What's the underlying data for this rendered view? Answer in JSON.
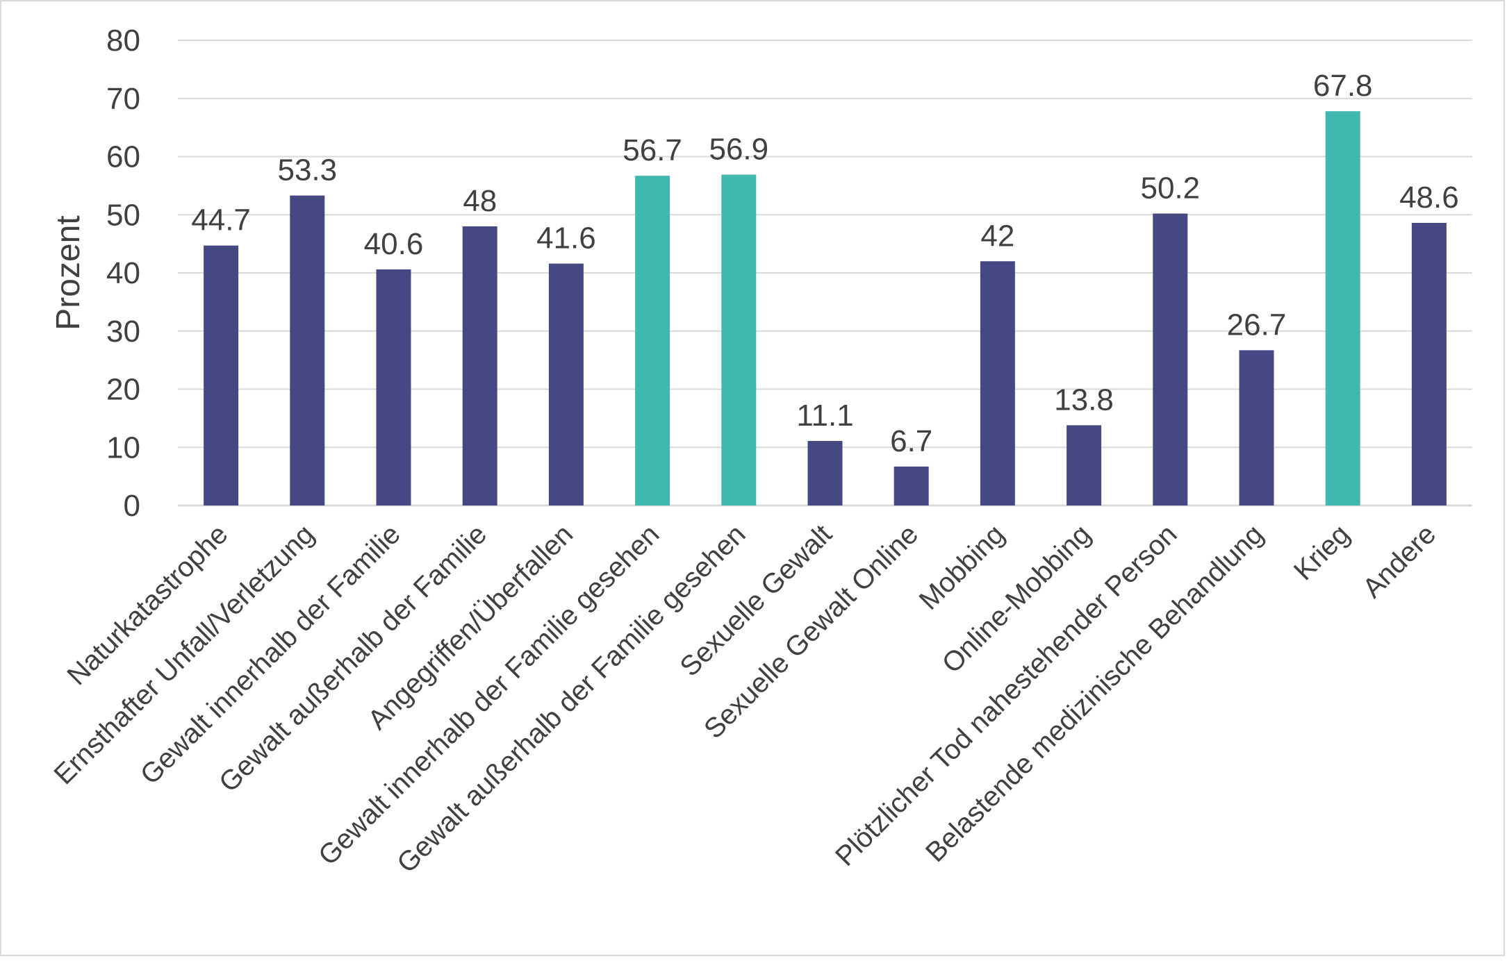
{
  "chart_data": {
    "type": "bar",
    "title": "",
    "xlabel": "",
    "ylabel": "Prozent",
    "ylim": [
      0,
      80
    ],
    "yticks": [
      0,
      10,
      20,
      30,
      40,
      50,
      60,
      70,
      80
    ],
    "grid": true,
    "legend": "none",
    "categories": [
      "Naturkatastrophe",
      "Ernsthafter Unfall/Verletzung",
      "Gewalt innerhalb der Familie",
      "Gewalt außerhalb der Familie",
      "Angegriffen/Überfallen",
      "Gewalt innerhalb der Familie gesehen",
      "Gewalt außerhalb der Familie gesehen",
      "Sexuelle Gewalt",
      "Sexuelle Gewalt Online",
      "Mobbing",
      "Online-Mobbing",
      "Plötzlicher Tod nahestehender Person",
      "Belastende medizinische Behandlung",
      "Krieg",
      "Andere"
    ],
    "values": [
      44.7,
      53.3,
      40.6,
      48,
      41.6,
      56.7,
      56.9,
      11.1,
      6.7,
      42,
      13.8,
      50.2,
      26.7,
      67.8,
      48.6
    ],
    "data_labels": [
      "44.7",
      "53.3",
      "40.6",
      "48",
      "41.6",
      "56.7",
      "56.9",
      "11.1",
      "6.7",
      "42",
      "13.8",
      "50.2",
      "26.7",
      "67.8",
      "48.6"
    ],
    "highlighted": [
      false,
      false,
      false,
      false,
      false,
      true,
      true,
      false,
      false,
      false,
      false,
      false,
      false,
      true,
      false
    ],
    "colors": {
      "default_bar": "#464884",
      "highlight_bar": "#40b8ad",
      "grid": "#d9d9d9",
      "text": "#404040"
    }
  }
}
